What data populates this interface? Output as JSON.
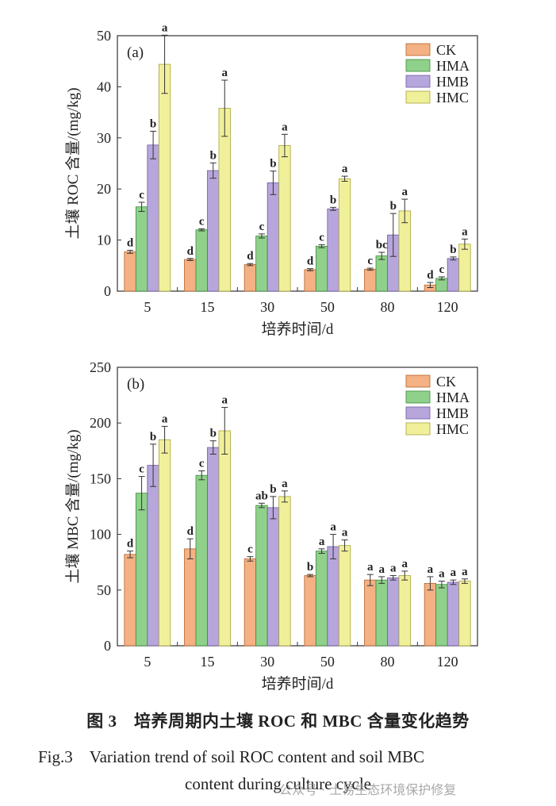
{
  "chart_data": [
    {
      "type": "bar",
      "panel_label": "(a)",
      "categories": [
        "5",
        "15",
        "30",
        "50",
        "80",
        "120"
      ],
      "xlabel": "培养时间/d",
      "ylabel": "土壤 ROC 含量/(mg/kg)",
      "ylim": [
        0,
        50
      ],
      "yticks": [
        0,
        10,
        20,
        30,
        40,
        50
      ],
      "legend_position": "top-right",
      "series": [
        {
          "name": "CK",
          "color": "#f4b183",
          "values": [
            7.7,
            6.2,
            5.2,
            4.2,
            4.3,
            1.2
          ],
          "errors": [
            0.3,
            0.2,
            0.2,
            0.2,
            0.2,
            0.5
          ],
          "letters": [
            "d",
            "d",
            "d",
            "d",
            "c",
            "d"
          ]
        },
        {
          "name": "HMA",
          "color": "#8fd18a",
          "values": [
            16.5,
            12.0,
            10.8,
            8.8,
            6.9,
            2.5
          ],
          "errors": [
            0.9,
            0.2,
            0.4,
            0.3,
            0.7,
            0.3
          ],
          "letters": [
            "c",
            "c",
            "c",
            "c",
            "bc",
            "c"
          ]
        },
        {
          "name": "HMB",
          "color": "#b7a6dc",
          "values": [
            28.6,
            23.6,
            21.2,
            16.1,
            11.0,
            6.4
          ],
          "errors": [
            2.7,
            1.5,
            2.3,
            0.3,
            4.2,
            0.3
          ],
          "letters": [
            "b",
            "b",
            "b",
            "b",
            "b",
            "b"
          ]
        },
        {
          "name": "HMC",
          "color": "#f1f09a",
          "values": [
            44.4,
            35.8,
            28.5,
            22.0,
            15.7,
            9.2
          ],
          "errors": [
            5.7,
            5.5,
            2.2,
            0.5,
            2.3,
            1.0
          ],
          "letters": [
            "a",
            "a",
            "a",
            "a",
            "a",
            "a"
          ]
        }
      ]
    },
    {
      "type": "bar",
      "panel_label": "(b)",
      "categories": [
        "5",
        "15",
        "30",
        "50",
        "80",
        "120"
      ],
      "xlabel": "培养时间/d",
      "ylabel": "土壤 MBC 含量/(mg/kg)",
      "ylim": [
        0,
        250
      ],
      "yticks": [
        0,
        50,
        100,
        150,
        200,
        250
      ],
      "legend_position": "top-right",
      "series": [
        {
          "name": "CK",
          "color": "#f4b183",
          "values": [
            82,
            87,
            78,
            63,
            59,
            56
          ],
          "errors": [
            3,
            9,
            2,
            1,
            5,
            6
          ],
          "letters": [
            "d",
            "d",
            "c",
            "b",
            "a",
            "a"
          ]
        },
        {
          "name": "HMA",
          "color": "#8fd18a",
          "values": [
            137,
            153,
            126,
            85,
            59,
            55
          ],
          "errors": [
            15,
            4,
            2,
            2,
            3,
            3
          ],
          "letters": [
            "c",
            "c",
            "ab",
            "a",
            "a",
            "a"
          ]
        },
        {
          "name": "HMB",
          "color": "#b7a6dc",
          "values": [
            162,
            178,
            124,
            89,
            61,
            57
          ],
          "errors": [
            19,
            6,
            10,
            11,
            2,
            2
          ],
          "letters": [
            "b",
            "b",
            "b",
            "a",
            "a",
            "a"
          ]
        },
        {
          "name": "HMC",
          "color": "#f1f09a",
          "values": [
            185,
            193,
            134,
            90,
            63,
            58
          ],
          "errors": [
            12,
            21,
            5,
            5,
            4,
            2
          ],
          "letters": [
            "a",
            "a",
            "a",
            "a",
            "a",
            "a"
          ]
        }
      ]
    }
  ],
  "caption": {
    "cn": "图 3　培养周期内土壤 ROC 和 MBC 含量变化趋势",
    "en_line1": "Fig.3　Variation trend of soil ROC content and soil MBC",
    "en_line2": "content during culture cycle"
  },
  "watermark": "公众号 · 土易生态环境保护修复"
}
